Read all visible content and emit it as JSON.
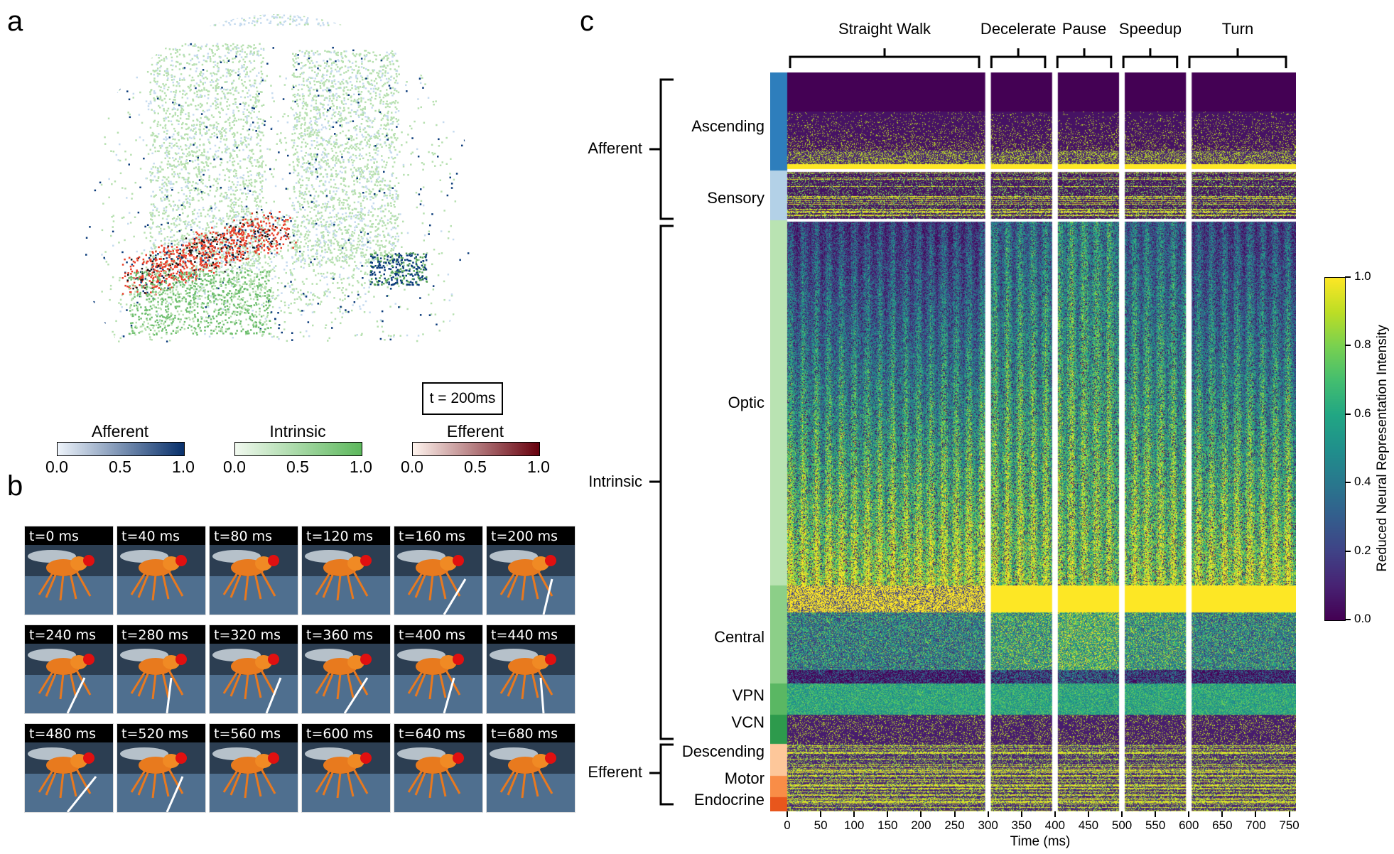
{
  "panels": {
    "a": "a",
    "b": "b",
    "c": "c"
  },
  "panel_a": {
    "time_box": "t = 200ms",
    "colorbars": [
      {
        "title": "Afferent",
        "ticks": [
          "0.0",
          "0.5",
          "1.0"
        ],
        "from": "#eef4fb",
        "to": "#08306b"
      },
      {
        "title": "Intrinsic",
        "ticks": [
          "0.0",
          "0.5",
          "1.0"
        ],
        "from": "#f1f9ef",
        "to": "#5cb85c"
      },
      {
        "title": "Efferent",
        "ticks": [
          "0.0",
          "0.5",
          "1.0"
        ],
        "from": "#fff4ee",
        "to": "#67000d"
      }
    ],
    "colors": {
      "afferent_light": "#c6dbef",
      "afferent_dark": "#0b3b7a",
      "intrinsic": "#b7e0b0",
      "efferent": "#e8402a"
    }
  },
  "panel_b": {
    "frames": [
      "t=0 ms",
      "t=40 ms",
      "t=80 ms",
      "t=120 ms",
      "t=160 ms",
      "t=200 ms",
      "t=240 ms",
      "t=280 ms",
      "t=320 ms",
      "t=360 ms",
      "t=400 ms",
      "t=440 ms",
      "t=480 ms",
      "t=520 ms",
      "t=560 ms",
      "t=600 ms",
      "t=640 ms",
      "t=680 ms"
    ]
  },
  "chart_data": {
    "type": "heatmap",
    "title": "",
    "xlabel": "Time (ms)",
    "xlim": [
      0,
      760
    ],
    "x_ticks": [
      "0",
      "50",
      "100",
      "150",
      "200",
      "250",
      "300",
      "350",
      "400",
      "450",
      "500",
      "550",
      "600",
      "650",
      "700",
      "750"
    ],
    "phases": [
      {
        "name": "Straight Walk",
        "start": 0,
        "end": 295
      },
      {
        "name": "Decelerate",
        "start": 305,
        "end": 395
      },
      {
        "name": "Pause",
        "start": 405,
        "end": 495
      },
      {
        "name": "Speedup",
        "start": 505,
        "end": 595
      },
      {
        "name": "Turn",
        "start": 605,
        "end": 760
      }
    ],
    "phase_boundaries_ms": [
      300,
      400,
      500,
      600
    ],
    "groups": [
      {
        "name": "Afferent",
        "subgroups": [
          "Ascending",
          "Sensory"
        ]
      },
      {
        "name": "Intrinsic",
        "subgroups": [
          "Optic",
          "Central",
          "VPN",
          "VCN"
        ]
      },
      {
        "name": "Efferent",
        "subgroups": [
          "Descending",
          "Motor",
          "Endocrine"
        ]
      }
    ],
    "subgroup_colors": {
      "Ascending": "#2e7ebc",
      "Sensory": "#b3d1e7",
      "Optic": "#b9e3b2",
      "Central": "#8ccf88",
      "VPN": "#5ab763",
      "VCN": "#2d9a4c",
      "Descending": "#fdc79a",
      "Motor": "#f98d47",
      "Endocrine": "#e8561c"
    },
    "colorbar": {
      "label": "Reduced Neural Representation Intensity",
      "range": [
        0.0,
        1.0
      ],
      "ticks": [
        "0.0",
        "0.2",
        "0.4",
        "0.6",
        "0.8",
        "1.0"
      ],
      "colormap": "viridis"
    }
  }
}
